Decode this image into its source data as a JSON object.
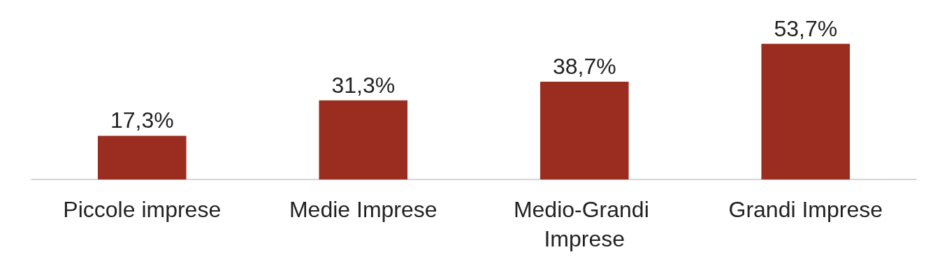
{
  "chart_data": {
    "type": "bar",
    "categories": [
      "Piccole imprese",
      "Medie Imprese",
      "Medio-Grandi Imprese",
      "Grandi Imprese"
    ],
    "values": [
      17.3,
      31.3,
      38.7,
      53.7
    ],
    "value_labels": [
      "17,3%",
      "31,3%",
      "38,7%",
      "53,7%"
    ],
    "color": "#9b2d20"
  }
}
